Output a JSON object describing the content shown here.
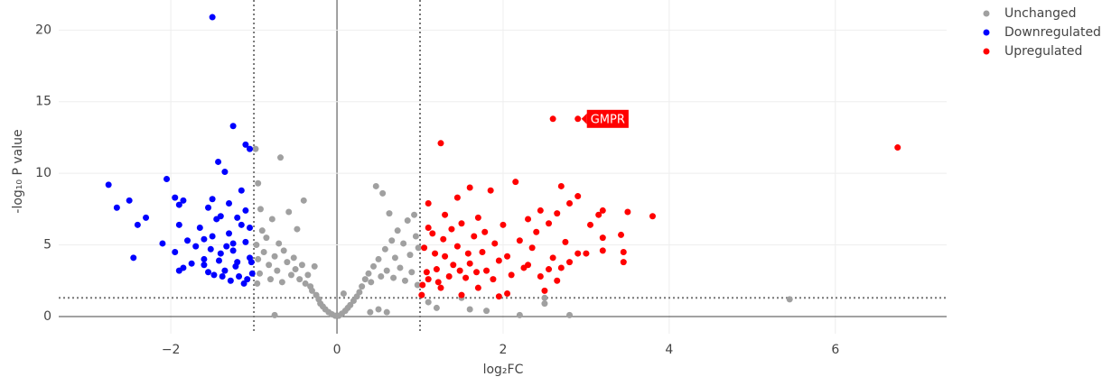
{
  "chart_data": {
    "type": "scatter",
    "xlabel": "log₂FC",
    "ylabel": "-log₁₀ P value",
    "xlim": [
      -3.35,
      7.34
    ],
    "ylim": [
      -1.2,
      22.1
    ],
    "xticks": [
      {
        "value": -2,
        "label": "−2"
      },
      0,
      2,
      4,
      6
    ],
    "yticks": [
      0,
      5,
      10,
      15,
      20
    ],
    "grid": true,
    "legend": "top-right",
    "thresholds": {
      "x": [
        -1,
        1
      ],
      "y": 1.3
    },
    "annotations": [
      {
        "text": "GMPR",
        "x": 2.9,
        "y": 13.8,
        "color": "#ff0000"
      }
    ],
    "series": [
      {
        "name": "Unchanged",
        "color": "#a0a0a0",
        "x": [
          -0.98,
          -0.95,
          -0.92,
          -0.9,
          -0.97,
          -0.95,
          -0.93,
          -0.96,
          -0.88,
          -0.85,
          -0.82,
          -0.8,
          -0.78,
          -0.75,
          -0.72,
          -0.7,
          -0.68,
          -0.66,
          -0.64,
          -0.6,
          -0.58,
          -0.55,
          -0.52,
          -0.5,
          -0.48,
          -0.45,
          -0.42,
          -0.4,
          -0.38,
          -0.35,
          -0.32,
          -0.3,
          -0.27,
          -0.25,
          -0.22,
          -0.2,
          -0.17,
          -0.14,
          -0.1,
          -0.06,
          -0.02,
          0.02,
          0.06,
          0.1,
          0.13,
          0.16,
          0.08,
          0.2,
          0.24,
          0.27,
          0.3,
          0.34,
          0.38,
          0.41,
          0.44,
          0.47,
          0.5,
          0.53,
          0.55,
          0.58,
          0.6,
          0.63,
          0.66,
          0.68,
          0.7,
          0.73,
          0.76,
          0.8,
          0.82,
          0.85,
          0.88,
          0.9,
          0.93,
          0.95,
          0.97,
          0.98,
          -0.75,
          0.4,
          0.6,
          0.5,
          1.2,
          1.6,
          1.8,
          2.2,
          2.5,
          2.5,
          2.8,
          5.45,
          1.1,
          1.5
        ],
        "y": [
          11.7,
          9.3,
          7.5,
          6,
          5,
          4,
          3,
          2.3,
          4.5,
          5.5,
          3.6,
          2.6,
          6.8,
          4.2,
          3.2,
          5.1,
          11.1,
          2.4,
          4.6,
          3.8,
          7.3,
          2.9,
          4.1,
          3.3,
          6.1,
          2.6,
          3.6,
          8.1,
          2.3,
          2.9,
          2.1,
          1.8,
          3.5,
          1.5,
          1.2,
          0.9,
          0.7,
          0.5,
          0.3,
          0.15,
          0.05,
          0.05,
          0.2,
          0.4,
          0.6,
          0.8,
          1.6,
          1.1,
          1.4,
          1.7,
          2.1,
          2.6,
          3,
          2.4,
          3.5,
          9.1,
          4,
          2.8,
          8.6,
          4.7,
          3.2,
          7.2,
          5.3,
          2.7,
          4.1,
          6,
          3.4,
          5.1,
          2.5,
          6.7,
          4.3,
          3.1,
          7.1,
          5.6,
          2.2,
          4.8,
          0.1,
          0.3,
          0.3,
          0.5,
          0.6,
          0.5,
          0.4,
          0.1,
          0.9,
          1.3,
          0.1,
          1.2,
          1,
          1.3
        ]
      },
      {
        "name": "Downregulated",
        "color": "#0000ff",
        "x": [
          -1.5,
          -1.25,
          -1.1,
          -1.05,
          -1.43,
          -1.35,
          -2.75,
          -2.05,
          -2.5,
          -2.65,
          -2.3,
          -2.4,
          -1.95,
          -1.85,
          -1.9,
          -1.5,
          -1.15,
          -1.55,
          -2.1,
          -1.95,
          -2.45,
          -1.9,
          -1.65,
          -1.8,
          -1.7,
          -1.6,
          -1.85,
          -1.6,
          -1.5,
          -1.45,
          -1.4,
          -1.35,
          -1.3,
          -1.25,
          -1.2,
          -1.15,
          -1.1,
          -1.05,
          -1.02,
          -1.08,
          -1.12,
          -1.18,
          -1.22,
          -1.28,
          -1.33,
          -1.38,
          -1.42,
          -1.48,
          -1.55,
          -1.52,
          -1.75,
          -1.9,
          -1.4,
          -1.2,
          -1.1,
          -1.05,
          -1.3,
          -1.6,
          -1.25,
          -1.03
        ],
        "y": [
          20.9,
          13.3,
          12,
          11.7,
          10.8,
          10.1,
          9.2,
          9.6,
          8.1,
          7.6,
          6.9,
          6.4,
          8.3,
          8.1,
          7.8,
          8.2,
          8.8,
          7.6,
          5.1,
          4.5,
          4.1,
          6.4,
          6.2,
          5.3,
          4.9,
          4,
          3.4,
          3.6,
          5.6,
          6.8,
          4.4,
          3.2,
          5.8,
          4.6,
          3.8,
          6.4,
          5.2,
          4.1,
          3,
          2.6,
          2.3,
          2.8,
          3.5,
          2.5,
          4.9,
          2.8,
          3.9,
          2.9,
          3.1,
          4.7,
          3.7,
          3.2,
          7,
          6.9,
          7.4,
          6.2,
          7.9,
          5.4,
          5.1,
          3.8
        ]
      },
      {
        "name": "Upregulated",
        "color": "#ff0000",
        "x": [
          2.9,
          2.6,
          1.25,
          6.75,
          2.15,
          2.7,
          1.6,
          1.85,
          2.9,
          1.45,
          1.1,
          2.8,
          2.45,
          3.2,
          3.5,
          3.8,
          2.65,
          3.05,
          3.15,
          2.55,
          1.3,
          1.5,
          1.7,
          2,
          2.3,
          3.2,
          3.42,
          2.75,
          3.2,
          3.45,
          3.45,
          3,
          2.9,
          2.8,
          2.55,
          2.3,
          2.05,
          1.9,
          1.75,
          1.6,
          1.45,
          1.3,
          1.2,
          1.1,
          1.05,
          1.08,
          1.15,
          1.22,
          1.35,
          1.4,
          1.55,
          1.65,
          1.8,
          1.95,
          2.1,
          2.2,
          2.35,
          2.45,
          2.6,
          2.7,
          2.05,
          1.95,
          1.7,
          1.5,
          1.02,
          1.25,
          2.5,
          1.1,
          1.18,
          1.28,
          1.38,
          1.48,
          1.58,
          1.68,
          1.78,
          1.88,
          2.25,
          2.4,
          2.65,
          1.03
        ],
        "y": [
          13.8,
          13.8,
          12.1,
          11.8,
          9.4,
          9.1,
          9,
          8.8,
          8.4,
          8.3,
          7.9,
          7.9,
          7.4,
          7.4,
          7.3,
          7,
          7.2,
          6.4,
          7.1,
          6.5,
          7.1,
          6.5,
          6.9,
          6.4,
          6.8,
          5.5,
          5.7,
          5.2,
          4.6,
          4.5,
          3.8,
          4.4,
          4.4,
          3.8,
          3.3,
          3.6,
          4.2,
          5.1,
          4.5,
          3.7,
          4.9,
          4.2,
          3.3,
          2.6,
          4.8,
          3.1,
          5.8,
          2.4,
          2.8,
          3.6,
          2.7,
          5.6,
          3.2,
          3.9,
          2.9,
          5.3,
          4.8,
          2.8,
          4.1,
          3.4,
          1.6,
          1.4,
          2,
          1.5,
          1.5,
          2,
          1.8,
          6.2,
          4.4,
          5.4,
          6.1,
          3.2,
          4.4,
          3.1,
          5.9,
          2.6,
          3.4,
          5.9,
          2.5,
          2.2
        ]
      }
    ]
  }
}
